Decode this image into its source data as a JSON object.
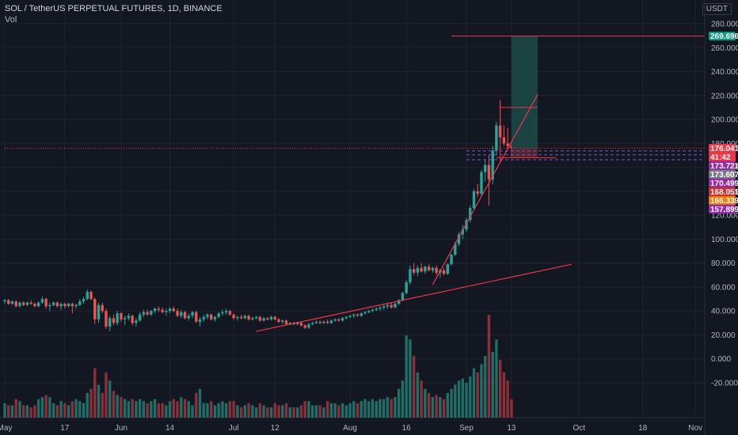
{
  "header": {
    "title": "SOL / TetherUS PERPETUAL FUTURES, 1D, BINANCE",
    "indicator": "Vol",
    "currency": "USDT"
  },
  "countdown": "41:42",
  "colors": {
    "background": "#131722",
    "grid": "#1f2330",
    "up": "#26a69a",
    "down": "#ef5350",
    "drawing": "#f23645",
    "vol_up": "#1f6e68",
    "vol_down": "#8c2f38",
    "target_zone": "#1b4a47",
    "stop_zone": "#5a2a33"
  },
  "chart_data": {
    "type": "candlestick",
    "title": "SOL / TetherUS PERPETUAL FUTURES, 1D, BINANCE",
    "y_axis": {
      "min": -20,
      "max": 280,
      "ticks": [
        -20,
        0,
        20,
        40,
        60,
        80,
        100,
        120,
        140,
        160,
        180,
        200,
        220,
        240,
        260,
        280
      ],
      "tick_labels": [
        "-20.000",
        "0.000",
        "20.000",
        "40.000",
        "60.000",
        "80.000",
        "100.000",
        "120.000",
        "140.000",
        "160.000",
        "180.000",
        "200.000",
        "220.000",
        "240.000",
        "260.000",
        "280.000"
      ]
    },
    "x_axis": {
      "start_date": "2021-05-01",
      "end_date": "2021-11-06",
      "ticks": [
        {
          "label": "May",
          "date": "2021-05-01"
        },
        {
          "label": "17",
          "date": "2021-05-17"
        },
        {
          "label": "Jun",
          "date": "2021-06-01"
        },
        {
          "label": "14",
          "date": "2021-06-14"
        },
        {
          "label": "Jul",
          "date": "2021-07-01"
        },
        {
          "label": "12",
          "date": "2021-07-12"
        },
        {
          "label": "Aug",
          "date": "2021-08-01"
        },
        {
          "label": "16",
          "date": "2021-08-16"
        },
        {
          "label": "Sep",
          "date": "2021-09-01"
        },
        {
          "label": "13",
          "date": "2021-09-13"
        },
        {
          "label": "Oct",
          "date": "2021-10-01"
        },
        {
          "label": "18",
          "date": "2021-10-18"
        },
        {
          "label": "Nov",
          "date": "2021-11-01"
        }
      ]
    },
    "price_tags": [
      {
        "value": 269.696,
        "label": "269.696",
        "color": "#089981"
      },
      {
        "value": 176.041,
        "label": "176.041",
        "color": "#f23645"
      },
      {
        "value": 173.721,
        "label": "173.721",
        "color": "#9c27b0"
      },
      {
        "value": 173.607,
        "label": "173.607",
        "color": "#787b86"
      },
      {
        "value": 170.499,
        "label": "170.499",
        "color": "#9c27b0"
      },
      {
        "value": 168.051,
        "label": "168.051",
        "color": "#d32f2f"
      },
      {
        "value": 166.339,
        "label": "166.339",
        "color": "#f57c00"
      },
      {
        "value": 157.899,
        "label": "157.899",
        "color": "#9c27b0"
      }
    ],
    "ohlc": [
      [
        "2021-05-01",
        48,
        50,
        46,
        49,
        7
      ],
      [
        "2021-05-02",
        49,
        50,
        45,
        46,
        6
      ],
      [
        "2021-05-03",
        46,
        49,
        45,
        48,
        6
      ],
      [
        "2021-05-04",
        48,
        49,
        43,
        44,
        9
      ],
      [
        "2021-05-05",
        44,
        48,
        43,
        47,
        8
      ],
      [
        "2021-05-06",
        47,
        48,
        44,
        45,
        6
      ],
      [
        "2021-05-07",
        45,
        48,
        44,
        47,
        6
      ],
      [
        "2021-05-08",
        47,
        49,
        45,
        46,
        5
      ],
      [
        "2021-05-09",
        46,
        47,
        43,
        44,
        6
      ],
      [
        "2021-05-10",
        44,
        48,
        43,
        47,
        9
      ],
      [
        "2021-05-11",
        47,
        52,
        46,
        50,
        10
      ],
      [
        "2021-05-12",
        50,
        51,
        42,
        44,
        11
      ],
      [
        "2021-05-13",
        44,
        47,
        40,
        45,
        10
      ],
      [
        "2021-05-14",
        45,
        48,
        44,
        47,
        7
      ],
      [
        "2021-05-15",
        47,
        48,
        43,
        44,
        6
      ],
      [
        "2021-05-16",
        44,
        47,
        41,
        46,
        8
      ],
      [
        "2021-05-17",
        46,
        47,
        42,
        44,
        7
      ],
      [
        "2021-05-18",
        44,
        47,
        43,
        46,
        6
      ],
      [
        "2021-05-19",
        46,
        47,
        38,
        44,
        8
      ],
      [
        "2021-05-20",
        44,
        46,
        42,
        45,
        9
      ],
      [
        "2021-05-21",
        45,
        50,
        44,
        48,
        8
      ],
      [
        "2021-05-22",
        48,
        52,
        46,
        50,
        7
      ],
      [
        "2021-05-23",
        50,
        58,
        49,
        56,
        12
      ],
      [
        "2021-05-24",
        56,
        57,
        49,
        50,
        14
      ],
      [
        "2021-05-25",
        50,
        51,
        29,
        33,
        24
      ],
      [
        "2021-05-26",
        33,
        47,
        30,
        45,
        16
      ],
      [
        "2021-05-27",
        45,
        47,
        38,
        40,
        12
      ],
      [
        "2021-05-28",
        40,
        42,
        25,
        27,
        22
      ],
      [
        "2021-05-29",
        27,
        36,
        23,
        34,
        18
      ],
      [
        "2021-05-30",
        34,
        37,
        28,
        30,
        13
      ],
      [
        "2021-05-31",
        30,
        40,
        28,
        38,
        11
      ],
      [
        "2021-06-01",
        38,
        39,
        31,
        33,
        10
      ],
      [
        "2021-06-02",
        33,
        36,
        28,
        34,
        9
      ],
      [
        "2021-06-03",
        34,
        38,
        32,
        36,
        8
      ],
      [
        "2021-06-04",
        36,
        37,
        28,
        30,
        9
      ],
      [
        "2021-06-05",
        30,
        34,
        27,
        32,
        8
      ],
      [
        "2021-06-06",
        32,
        39,
        31,
        37,
        9
      ],
      [
        "2021-06-07",
        37,
        41,
        35,
        39,
        8
      ],
      [
        "2021-06-08",
        39,
        41,
        36,
        37,
        7
      ],
      [
        "2021-06-09",
        37,
        41,
        36,
        40,
        8
      ],
      [
        "2021-06-10",
        40,
        43,
        38,
        42,
        9
      ],
      [
        "2021-06-11",
        42,
        44,
        39,
        41,
        7
      ],
      [
        "2021-06-12",
        41,
        43,
        38,
        39,
        7
      ],
      [
        "2021-06-13",
        39,
        42,
        36,
        40,
        6
      ],
      [
        "2021-06-14",
        40,
        43,
        38,
        42,
        8
      ],
      [
        "2021-06-15",
        42,
        44,
        39,
        40,
        9
      ],
      [
        "2021-06-16",
        40,
        42,
        35,
        36,
        8
      ],
      [
        "2021-06-17",
        36,
        41,
        34,
        39,
        10
      ],
      [
        "2021-06-18",
        39,
        40,
        33,
        34,
        9
      ],
      [
        "2021-06-19",
        34,
        38,
        32,
        36,
        8
      ],
      [
        "2021-06-20",
        36,
        40,
        34,
        39,
        6
      ],
      [
        "2021-06-21",
        39,
        40,
        30,
        31,
        12
      ],
      [
        "2021-06-22",
        31,
        35,
        27,
        33,
        14
      ],
      [
        "2021-06-23",
        33,
        37,
        31,
        35,
        7
      ],
      [
        "2021-06-24",
        35,
        38,
        33,
        37,
        7
      ],
      [
        "2021-06-25",
        37,
        38,
        32,
        33,
        8
      ],
      [
        "2021-06-26",
        33,
        36,
        31,
        35,
        6
      ],
      [
        "2021-06-27",
        35,
        39,
        34,
        38,
        7
      ],
      [
        "2021-06-28",
        38,
        41,
        36,
        39,
        8
      ],
      [
        "2021-06-29",
        39,
        42,
        37,
        40,
        7
      ],
      [
        "2021-06-30",
        40,
        41,
        36,
        37,
        8
      ],
      [
        "2021-07-01",
        37,
        38,
        33,
        34,
        8
      ],
      [
        "2021-07-02",
        34,
        36,
        32,
        35,
        6
      ],
      [
        "2021-07-03",
        35,
        37,
        33,
        34,
        5
      ],
      [
        "2021-07-04",
        34,
        37,
        33,
        36,
        6
      ],
      [
        "2021-07-05",
        36,
        37,
        32,
        33,
        7
      ],
      [
        "2021-07-06",
        33,
        35,
        32,
        34,
        6
      ],
      [
        "2021-07-07",
        34,
        36,
        33,
        35,
        5
      ],
      [
        "2021-07-08",
        35,
        36,
        31,
        32,
        7
      ],
      [
        "2021-07-09",
        32,
        35,
        31,
        34,
        6
      ],
      [
        "2021-07-10",
        34,
        35,
        32,
        33,
        5
      ],
      [
        "2021-07-11",
        33,
        36,
        32,
        35,
        5
      ],
      [
        "2021-07-12",
        35,
        36,
        32,
        33,
        7
      ],
      [
        "2021-07-13",
        33,
        34,
        30,
        31,
        6
      ],
      [
        "2021-07-14",
        31,
        33,
        29,
        32,
        6
      ],
      [
        "2021-07-15",
        32,
        33,
        28,
        29,
        7
      ],
      [
        "2021-07-16",
        29,
        31,
        28,
        30,
        5
      ],
      [
        "2021-07-17",
        30,
        31,
        28,
        29,
        5
      ],
      [
        "2021-07-18",
        29,
        31,
        28,
        30,
        5
      ],
      [
        "2021-07-19",
        30,
        31,
        27,
        28,
        6
      ],
      [
        "2021-07-20",
        28,
        29,
        25,
        26,
        8
      ],
      [
        "2021-07-21",
        26,
        30,
        25,
        29,
        8
      ],
      [
        "2021-07-22",
        29,
        31,
        28,
        30,
        6
      ],
      [
        "2021-07-23",
        30,
        32,
        29,
        31,
        6
      ],
      [
        "2021-07-24",
        31,
        32,
        29,
        30,
        6
      ],
      [
        "2021-07-25",
        30,
        32,
        29,
        31,
        5
      ],
      [
        "2021-07-26",
        31,
        33,
        29,
        30,
        8
      ],
      [
        "2021-07-27",
        30,
        33,
        29,
        32,
        7
      ],
      [
        "2021-07-28",
        32,
        34,
        31,
        33,
        7
      ],
      [
        "2021-07-29",
        33,
        34,
        31,
        32,
        6
      ],
      [
        "2021-07-30",
        32,
        35,
        31,
        34,
        7
      ],
      [
        "2021-07-31",
        34,
        36,
        33,
        35,
        6
      ],
      [
        "2021-08-01",
        35,
        37,
        34,
        36,
        7
      ],
      [
        "2021-08-02",
        36,
        38,
        34,
        37,
        8
      ],
      [
        "2021-08-03",
        37,
        38,
        35,
        36,
        7
      ],
      [
        "2021-08-04",
        36,
        39,
        35,
        38,
        8
      ],
      [
        "2021-08-05",
        38,
        40,
        37,
        39,
        9
      ],
      [
        "2021-08-06",
        39,
        41,
        38,
        40,
        8
      ],
      [
        "2021-08-07",
        40,
        42,
        39,
        41,
        9
      ],
      [
        "2021-08-08",
        41,
        43,
        40,
        42,
        8
      ],
      [
        "2021-08-09",
        42,
        44,
        40,
        43,
        9
      ],
      [
        "2021-08-10",
        43,
        45,
        41,
        44,
        9
      ],
      [
        "2021-08-11",
        44,
        46,
        42,
        45,
        10
      ],
      [
        "2021-08-12",
        45,
        47,
        42,
        43,
        9
      ],
      [
        "2021-08-13",
        43,
        47,
        42,
        46,
        10
      ],
      [
        "2021-08-14",
        46,
        50,
        45,
        49,
        14
      ],
      [
        "2021-08-15",
        49,
        56,
        48,
        55,
        18
      ],
      [
        "2021-08-16",
        55,
        66,
        54,
        64,
        40
      ],
      [
        "2021-08-17",
        64,
        78,
        62,
        75,
        38
      ],
      [
        "2021-08-18",
        75,
        80,
        70,
        72,
        30
      ],
      [
        "2021-08-19",
        72,
        78,
        69,
        76,
        22
      ],
      [
        "2021-08-20",
        76,
        80,
        72,
        73,
        18
      ],
      [
        "2021-08-21",
        73,
        78,
        71,
        77,
        14
      ],
      [
        "2021-08-22",
        77,
        79,
        73,
        74,
        12
      ],
      [
        "2021-08-23",
        74,
        77,
        72,
        76,
        10
      ],
      [
        "2021-08-24",
        76,
        78,
        70,
        72,
        11
      ],
      [
        "2021-08-25",
        72,
        75,
        68,
        74,
        10
      ],
      [
        "2021-08-26",
        74,
        76,
        70,
        71,
        9
      ],
      [
        "2021-08-27",
        71,
        80,
        70,
        79,
        12
      ],
      [
        "2021-08-28",
        79,
        88,
        78,
        87,
        14
      ],
      [
        "2021-08-29",
        87,
        98,
        86,
        96,
        16
      ],
      [
        "2021-08-30",
        96,
        106,
        94,
        104,
        18
      ],
      [
        "2021-08-31",
        104,
        112,
        100,
        108,
        19
      ],
      [
        "2021-09-01",
        108,
        118,
        106,
        116,
        17
      ],
      [
        "2021-09-02",
        116,
        128,
        114,
        126,
        20
      ],
      [
        "2021-09-03",
        126,
        142,
        124,
        140,
        24
      ],
      [
        "2021-09-04",
        140,
        146,
        135,
        138,
        22
      ],
      [
        "2021-09-05",
        138,
        158,
        136,
        156,
        26
      ],
      [
        "2021-09-06",
        156,
        166,
        148,
        162,
        30
      ],
      [
        "2021-09-07",
        162,
        170,
        128,
        150,
        50
      ],
      [
        "2021-09-08",
        150,
        178,
        146,
        174,
        32
      ],
      [
        "2021-09-09",
        174,
        198,
        170,
        195,
        38
      ],
      [
        "2021-09-10",
        195,
        216,
        180,
        185,
        28
      ],
      [
        "2021-09-11",
        185,
        195,
        178,
        180,
        22
      ],
      [
        "2021-09-12",
        180,
        193,
        175,
        178,
        18
      ],
      [
        "2021-09-13",
        178,
        181,
        168,
        176.041,
        9
      ]
    ],
    "drawings": {
      "horizontal_lines": [
        {
          "value": 269.696,
          "from": "2021-08-28",
          "to": "2021-11-06",
          "style": "solid"
        },
        {
          "value": 176.041,
          "from": "2021-05-01",
          "to": "2021-11-06",
          "style": "dotted"
        },
        {
          "value": 210,
          "from": "2021-09-10",
          "to": "2021-09-20",
          "style": "solid"
        },
        {
          "value": 173.721,
          "from": "2021-09-01",
          "to": "2021-11-06",
          "style": "dashed"
        },
        {
          "value": 170.499,
          "from": "2021-09-01",
          "to": "2021-11-06",
          "style": "dashed"
        },
        {
          "value": 168.051,
          "from": "2021-09-09",
          "to": "2021-09-25",
          "style": "solid"
        },
        {
          "value": 166.339,
          "from": "2021-09-01",
          "to": "2021-11-06",
          "style": "dashed"
        }
      ],
      "trend_lines": [
        {
          "from": [
            "2021-07-07",
            23
          ],
          "to": [
            "2021-09-29",
            79
          ]
        },
        {
          "from": [
            "2021-08-23",
            62
          ],
          "to": [
            "2021-09-20",
            221
          ]
        }
      ],
      "vertical_line": {
        "date": "2021-09-10",
        "from_value": 165,
        "to_value": 216
      },
      "position": {
        "from": "2021-09-13",
        "to": "2021-09-20",
        "entry": 176.041,
        "target": 269.696,
        "stop": 168.051
      }
    }
  }
}
